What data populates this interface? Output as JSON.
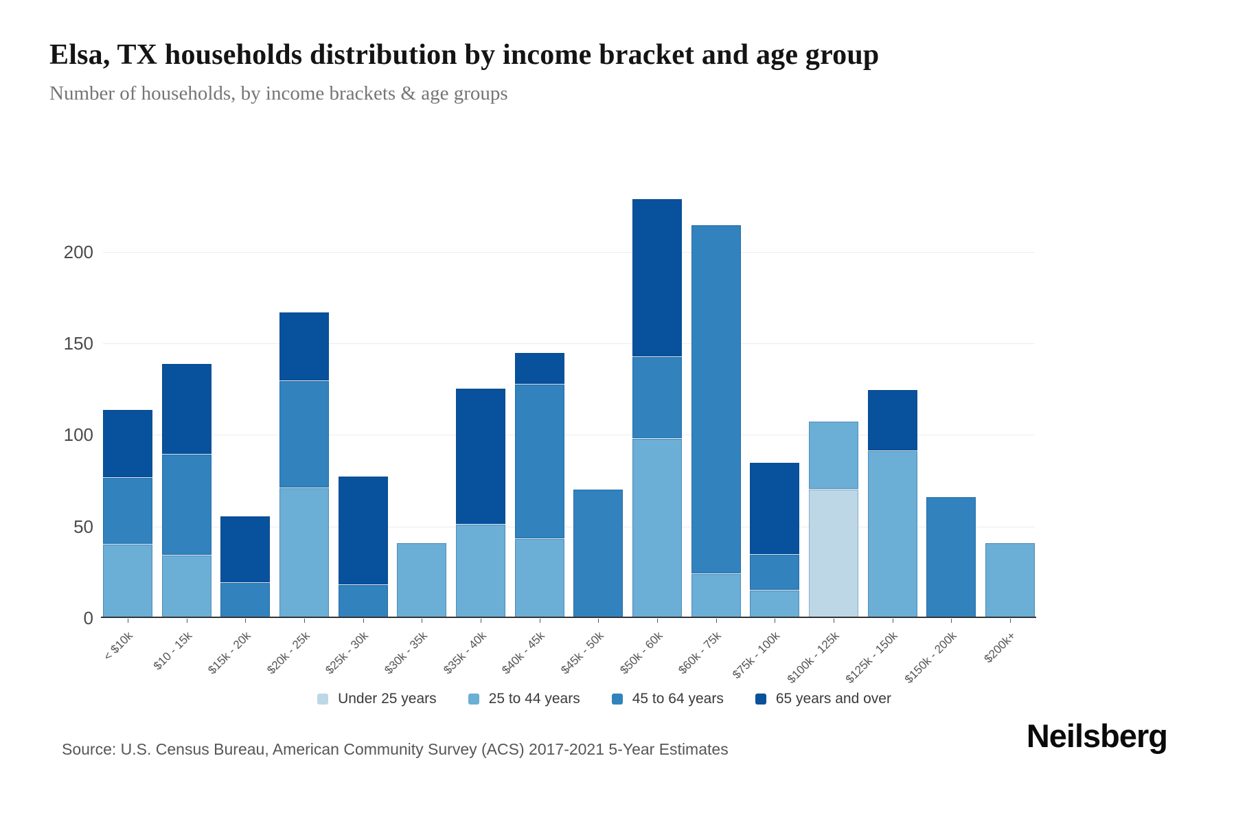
{
  "header": {
    "title": "Elsa, TX households distribution by income bracket and age group",
    "subtitle": "Number of households, by income brackets & age groups"
  },
  "chart_data": {
    "type": "bar",
    "stacked": true,
    "title": "Elsa, TX households distribution by income bracket and age group",
    "subtitle": "Number of households, by income brackets & age groups",
    "categories": [
      "< $10k",
      "$10 - 15k",
      "$15k - 20k",
      "$20k - 25k",
      "$25k - 30k",
      "$30k - 35k",
      "$35k - 40k",
      "$40k - 45k",
      "$45k - 50k",
      "$50k - 60k",
      "$60k - 75k",
      "$75k - 100k",
      "$100k - 125k",
      "$125k - 150k",
      "$150k - 200k",
      "$200k+"
    ],
    "series": [
      {
        "name": "Under 25 years",
        "color": "#bdd7e7",
        "values": [
          0,
          0,
          0,
          0,
          0,
          0,
          0,
          0,
          0,
          0,
          0,
          0,
          70,
          0,
          0,
          0
        ]
      },
      {
        "name": "25 to 44 years",
        "color": "#6baed6",
        "values": [
          40,
          34,
          0,
          71,
          0,
          41,
          51,
          43,
          0,
          98,
          24,
          15,
          37,
          91,
          0,
          41
        ]
      },
      {
        "name": "45 to 64 years",
        "color": "#3182bd",
        "values": [
          36,
          55,
          19,
          58,
          18,
          0,
          0,
          84,
          70,
          44,
          190,
          19,
          0,
          0,
          66,
          0
        ]
      },
      {
        "name": "65 years and over",
        "color": "#08519c",
        "values": [
          37,
          49,
          36,
          37,
          59,
          0,
          74,
          17,
          0,
          86,
          0,
          50,
          0,
          33,
          0,
          0
        ]
      }
    ],
    "xlabel": "",
    "ylabel": "",
    "ylim": [
      0,
      240
    ],
    "yticks": [
      0,
      50,
      100,
      150,
      200
    ],
    "grid": true,
    "legend_position": "bottom"
  },
  "footer": {
    "source": "Source: U.S. Census Bureau, American Community Survey (ACS) 2017-2021 5-Year Estimates",
    "brand": "Neilsberg"
  }
}
